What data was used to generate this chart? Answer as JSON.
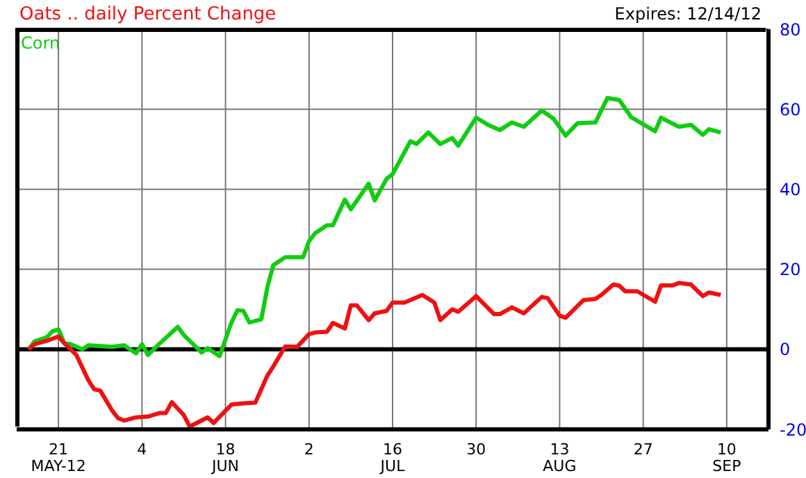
{
  "chart_data": {
    "type": "line",
    "title": "Oats .. daily Percent Change",
    "annotations": [
      "Expires: 12/14/12"
    ],
    "xlim": [
      "2012-05-14",
      "2012-09-17"
    ],
    "xticks": [
      {
        "value": "2012-05-21",
        "label": "21\nMAY-12"
      },
      {
        "value": "2012-06-04",
        "label": "4"
      },
      {
        "value": "2012-06-18",
        "label": "18\nJUN"
      },
      {
        "value": "2012-07-02",
        "label": "2"
      },
      {
        "value": "2012-07-16",
        "label": "16\nJUL"
      },
      {
        "value": "2012-07-30",
        "label": "30"
      },
      {
        "value": "2012-08-13",
        "label": "13\nAUG"
      },
      {
        "value": "2012-08-27",
        "label": "27"
      },
      {
        "value": "2012-09-10",
        "label": "10\nSEP"
      }
    ],
    "ylim": [
      -20,
      80
    ],
    "yticks": [
      -20,
      0,
      20,
      40,
      60,
      80
    ],
    "grid": true,
    "legend": "top left",
    "marker": "none",
    "line_style": "solid",
    "ref_lines": [
      {
        "axis": "y",
        "value": 0,
        "color": "#000000"
      }
    ],
    "series": [
      {
        "name": "Corn",
        "color": "#11cc11",
        "x": [
          "2012-05-16",
          "2012-05-17",
          "2012-05-19",
          "2012-05-20",
          "2012-05-21",
          "2012-05-22",
          "2012-05-23",
          "2012-05-25",
          "2012-05-26",
          "2012-05-30",
          "2012-06-01",
          "2012-06-03",
          "2012-06-04",
          "2012-06-05",
          "2012-06-07",
          "2012-06-10",
          "2012-06-11",
          "2012-06-14",
          "2012-06-15",
          "2012-06-17",
          "2012-06-19",
          "2012-06-20",
          "2012-06-21",
          "2012-06-22",
          "2012-06-24",
          "2012-06-25",
          "2012-06-26",
          "2012-06-28",
          "2012-07-01",
          "2012-07-02",
          "2012-07-03",
          "2012-07-05",
          "2012-07-06",
          "2012-07-08",
          "2012-07-09",
          "2012-07-12",
          "2012-07-13",
          "2012-07-15",
          "2012-07-16",
          "2012-07-19",
          "2012-07-20",
          "2012-07-22",
          "2012-07-24",
          "2012-07-26",
          "2012-07-27",
          "2012-07-30",
          "2012-08-01",
          "2012-08-03",
          "2012-08-05",
          "2012-08-07",
          "2012-08-10",
          "2012-08-12",
          "2012-08-14",
          "2012-08-16",
          "2012-08-19",
          "2012-08-21",
          "2012-08-23",
          "2012-08-25",
          "2012-08-29",
          "2012-08-30",
          "2012-09-02",
          "2012-09-04",
          "2012-09-06",
          "2012-09-07",
          "2012-09-09"
        ],
        "values": [
          0,
          2,
          3,
          4.5,
          5,
          1.5,
          1.3,
          0,
          1,
          0.6,
          1,
          -1,
          1.3,
          -1.4,
          1.5,
          5.6,
          3.6,
          -0.8,
          0.3,
          -1.7,
          6.7,
          9.8,
          9.6,
          6.7,
          7.5,
          15.4,
          21,
          23,
          23,
          27,
          29,
          31,
          31,
          37.4,
          35,
          41.4,
          37.2,
          42.6,
          43.8,
          52,
          51.3,
          54.2,
          51.3,
          52.8,
          50.9,
          57.9,
          56.1,
          54.8,
          56.7,
          55.6,
          59.7,
          57.6,
          53.4,
          56.5,
          56.7,
          62.8,
          62.3,
          58,
          54.5,
          57.9,
          55.6,
          56.1,
          53.6,
          55,
          54.2
        ]
      },
      {
        "color": "#ee1111",
        "x": [
          "2012-05-16",
          "2012-05-17",
          "2012-05-19",
          "2012-05-21",
          "2012-05-22",
          "2012-05-24",
          "2012-05-26",
          "2012-05-27",
          "2012-05-28",
          "2012-05-30",
          "2012-05-31",
          "2012-06-01",
          "2012-06-03",
          "2012-06-05",
          "2012-06-07",
          "2012-06-08",
          "2012-06-09",
          "2012-06-11",
          "2012-06-12",
          "2012-06-15",
          "2012-06-16",
          "2012-06-19",
          "2012-06-21",
          "2012-06-23",
          "2012-06-25",
          "2012-06-26",
          "2012-06-28",
          "2012-06-30",
          "2012-07-02",
          "2012-07-03",
          "2012-07-05",
          "2012-07-06",
          "2012-07-08",
          "2012-07-09",
          "2012-07-10",
          "2012-07-12",
          "2012-07-13",
          "2012-07-15",
          "2012-07-16",
          "2012-07-18",
          "2012-07-21",
          "2012-07-23",
          "2012-07-24",
          "2012-07-26",
          "2012-07-27",
          "2012-07-30",
          "2012-08-02",
          "2012-08-03",
          "2012-08-05",
          "2012-08-07",
          "2012-08-10",
          "2012-08-11",
          "2012-08-13",
          "2012-08-14",
          "2012-08-17",
          "2012-08-19",
          "2012-08-20",
          "2012-08-22",
          "2012-08-23",
          "2012-08-24",
          "2012-08-26",
          "2012-08-29",
          "2012-08-30",
          "2012-09-01",
          "2012-09-02",
          "2012-09-04",
          "2012-09-06",
          "2012-09-07",
          "2012-09-09"
        ],
        "values": [
          0,
          1.3,
          2.1,
          3.2,
          1.5,
          -1.4,
          -7.7,
          -10,
          -10.3,
          -15.3,
          -17.2,
          -17.8,
          -17,
          -16.8,
          -15.9,
          -15.9,
          -13.2,
          -16.4,
          -19.3,
          -17,
          -18.4,
          -13.8,
          -13.5,
          -13.3,
          -6.6,
          -4.3,
          0.7,
          0.6,
          3.8,
          4.2,
          4.4,
          6.6,
          5.2,
          11,
          11,
          7.3,
          9,
          9.6,
          11.7,
          11.7,
          13.6,
          11.7,
          7.3,
          10,
          9.4,
          13.3,
          8.8,
          8.8,
          10.5,
          9,
          13.1,
          12.8,
          8.4,
          7.9,
          12.3,
          12.6,
          13.6,
          16.2,
          15.9,
          14.5,
          14.5,
          11.9,
          16,
          16,
          16.6,
          16.2,
          13.3,
          14.2,
          13.6
        ]
      }
    ]
  }
}
